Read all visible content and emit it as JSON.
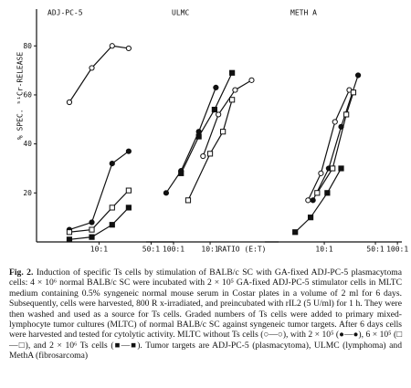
{
  "chart_data": [
    {
      "type": "line",
      "title": "ADJ-PC-5",
      "y_label": "% SPEC. ⁵¹Cr-RELEASE",
      "log_x": true,
      "xlim": [
        1.45,
        100
      ],
      "xticks": [
        {
          "value": 10,
          "label": "10:1"
        },
        {
          "value": 50,
          "label": "50:1"
        },
        {
          "value": 100,
          "label": "100:1"
        }
      ],
      "ylim": [
        0,
        95
      ],
      "yticks": [
        20,
        40,
        60,
        80
      ],
      "series": [
        {
          "color": "#111111",
          "marker": "circle-open",
          "x": [
            4,
            8,
            15,
            25
          ],
          "values": [
            57,
            71,
            80,
            79
          ]
        },
        {
          "color": "#111111",
          "marker": "circle-filled",
          "x": [
            4,
            8,
            15,
            25
          ],
          "values": [
            5,
            8,
            32,
            37
          ]
        },
        {
          "color": "#111111",
          "marker": "square-open",
          "x": [
            4,
            8,
            15,
            25
          ],
          "values": [
            4,
            5,
            14,
            21
          ]
        },
        {
          "color": "#111111",
          "marker": "square-filled",
          "x": [
            4,
            8,
            15,
            25
          ],
          "values": [
            1,
            2,
            7,
            14
          ]
        }
      ]
    },
    {
      "type": "line",
      "title": "ULMC",
      "x_label": "RATIO (E:T)",
      "log_x": true,
      "xlim": [
        1.33,
        86.6
      ],
      "xticks": [
        {
          "value": 10,
          "label": "10:1"
        }
      ],
      "ylim": [
        0,
        95
      ],
      "series": [
        {
          "color": "#111111",
          "marker": "circle-open",
          "x": [
            8,
            13,
            22,
            37
          ],
          "values": [
            35,
            52,
            62,
            66
          ]
        },
        {
          "color": "#111111",
          "marker": "circle-filled",
          "x": [
            2.5,
            4,
            7,
            12
          ],
          "values": [
            20,
            29,
            45,
            63
          ]
        },
        {
          "color": "#111111",
          "marker": "square-open",
          "x": [
            5,
            10,
            15,
            20
          ],
          "values": [
            17,
            36,
            45,
            58
          ]
        },
        {
          "color": "#111111",
          "marker": "square-filled",
          "x": [
            4,
            7,
            11.5,
            20
          ],
          "values": [
            28,
            43,
            54,
            69
          ]
        }
      ]
    },
    {
      "type": "line",
      "title": "METH A",
      "log_x": true,
      "xlim": [
        1.54,
        115
      ],
      "xticks": [
        {
          "value": 10,
          "label": "10:1"
        },
        {
          "value": 50,
          "label": "50:1"
        },
        {
          "value": 100,
          "label": "100:1"
        }
      ],
      "ylim": [
        0,
        95
      ],
      "series": [
        {
          "color": "#111111",
          "marker": "circle-open",
          "x": [
            6,
            9,
            14,
            22
          ],
          "values": [
            17,
            28,
            49,
            62
          ]
        },
        {
          "color": "#111111",
          "marker": "circle-filled",
          "x": [
            7,
            11.5,
            17,
            29
          ],
          "values": [
            17,
            30,
            47,
            68
          ]
        },
        {
          "color": "#111111",
          "marker": "square-open",
          "x": [
            8,
            13,
            20,
            25
          ],
          "values": [
            20,
            30,
            52,
            61
          ]
        },
        {
          "color": "#111111",
          "marker": "square-filled",
          "x": [
            4,
            6.5,
            11,
            17
          ],
          "values": [
            4,
            10,
            20,
            30
          ]
        }
      ]
    }
  ],
  "caption": {
    "label": "Fig. 2.",
    "text": "Induction of specific Ts cells by stimulation of BALB/c SC with GA-fixed ADJ-PC-5 plasmacytoma cells: 4 × 10⁶ normal BALB/c SC were incubated with 2 × 10⁵ GA-fixed ADJ-PC-5 stimulator cells in MLTC medium containing 0.5% syngeneic normal mouse serum in Costar plates in a volume of 2 ml for 6 days. Subsequently, cells were harvested, 800 R x-irradiated, and preincubated with rIL2 (5 U/ml) for 1 h. They were then washed and used as a source for Ts cells. Graded numbers of Ts cells were added to primary mixed-lymphocyte tumor cultures (MLTC) of normal BALB/c SC against syngeneic tumor targets. After 6 days cells were harvested and tested for cytolytic activity. MLTC without Ts cells (○—○), with 2 × 10⁵ (●—●), 6 × 10⁵ (□—□), and 2 × 10⁶ Ts cells (■—■). Tumor targets are ADJ-PC-5 (plasmacytoma), ULMC (lymphoma) and MethA (fibrosarcoma)"
  }
}
